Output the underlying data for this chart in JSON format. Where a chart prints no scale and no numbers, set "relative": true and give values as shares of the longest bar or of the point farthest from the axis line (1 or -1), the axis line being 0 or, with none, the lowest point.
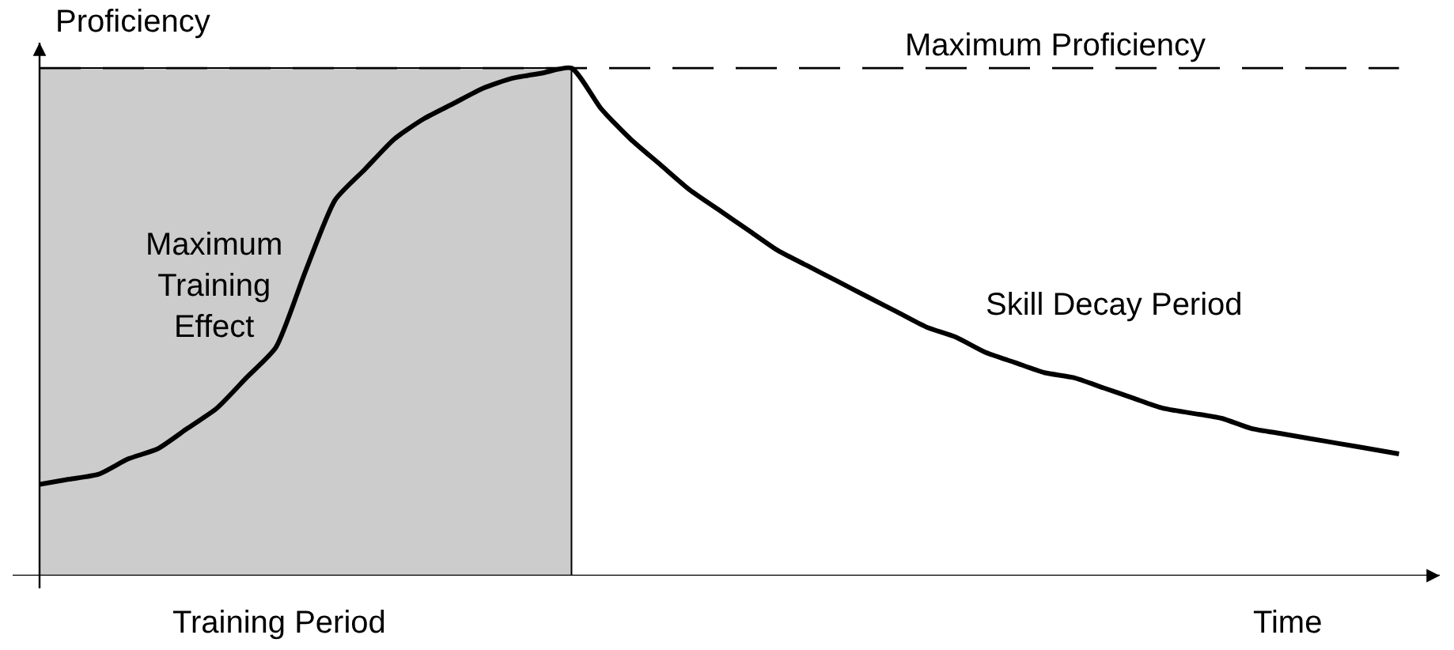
{
  "chart_data": {
    "type": "line",
    "relative": true,
    "categories": [
      null,
      null,
      null,
      null,
      null,
      null,
      null,
      null,
      null,
      null,
      null,
      null,
      null,
      null,
      null,
      null,
      null,
      null,
      null,
      null,
      null,
      null,
      null,
      null,
      null,
      null,
      null,
      null,
      null,
      null,
      null,
      null,
      null,
      null,
      null,
      null,
      null,
      null,
      null,
      null,
      null,
      null,
      null,
      null,
      null,
      null,
      null
    ],
    "series": [
      {
        "color": "#000000",
        "values": [
          0.18,
          0.19,
          0.2,
          0.23,
          0.25,
          0.29,
          0.33,
          0.39,
          0.45,
          0.6,
          0.74,
          0.8,
          0.86,
          0.9,
          0.93,
          0.96,
          0.98,
          0.99,
          1.0,
          0.92,
          0.86,
          0.81,
          0.76,
          0.72,
          0.68,
          0.64,
          0.61,
          0.58,
          0.55,
          0.52,
          0.49,
          0.47,
          0.44,
          0.42,
          0.4,
          0.39,
          0.37,
          0.35,
          0.33,
          0.32,
          0.31,
          0.29,
          0.28,
          0.27,
          0.26,
          0.25,
          0.24
        ]
      }
    ],
    "xlabel": "Time",
    "ylabel": "Proficiency",
    "ref_lines": [
      {
        "axis": "y",
        "value": 1,
        "label": "Maximum Proficiency",
        "line_style": "dashed",
        "color": "#000000"
      }
    ],
    "annotations": [
      "Maximum Training Effect",
      "Skill Decay Period",
      "Training Period"
    ]
  }
}
